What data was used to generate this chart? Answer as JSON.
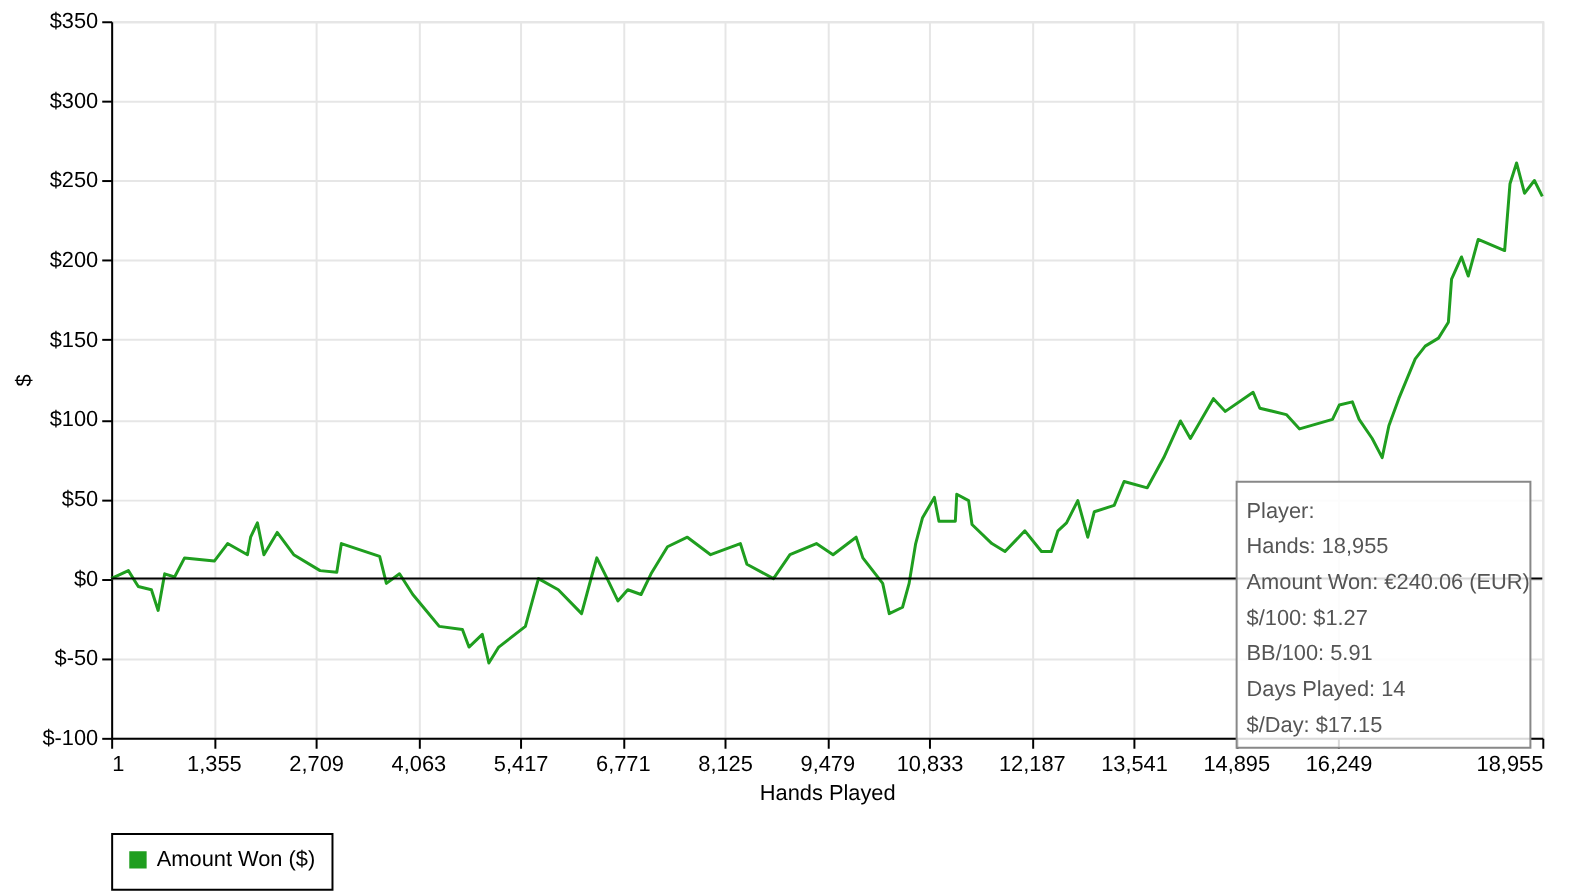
{
  "chart_data": {
    "type": "line",
    "xlabel": "Hands Played",
    "ylabel": "$",
    "x": [
      1,
      229,
      360,
      534,
      623,
      710,
      841,
      973,
      1367,
      1543,
      1806,
      1848,
      1938,
      2024,
      2200,
      2419,
      2768,
      2989,
      3050,
      3557,
      3646,
      3820,
      3996,
      4172,
      4346,
      4653,
      4740,
      4916,
      5003,
      5134,
      5487,
      5660,
      5923,
      6231,
      6362,
      6433,
      6580,
      6712,
      6843,
      7019,
      7151,
      7369,
      7632,
      7940,
      8334,
      8421,
      8773,
      8991,
      9341,
      9562,
      9867,
      9956,
      10219,
      10306,
      10482,
      10569,
      10656,
      10745,
      10903,
      10964,
      11181,
      11200,
      11357,
      11402,
      11665,
      11839,
      12102,
      12322,
      12453,
      12540,
      12654,
      12803,
      12935,
      13022,
      13285,
      13416,
      13723,
      13942,
      14163,
      14294,
      14599,
      14757,
      15125,
      15214,
      15565,
      15740,
      16176,
      16266,
      16439,
      16529,
      16702,
      16834,
      16923,
      17054,
      17272,
      17404,
      17580,
      17711,
      17753,
      17885,
      17974,
      18106,
      18456,
      18527,
      18614,
      18719,
      18850,
      18955
    ],
    "series": [
      {
        "name": "Amount Won ($)",
        "color": "#1f9e1f",
        "values": [
          0,
          5,
          -5,
          -7,
          -20,
          3,
          1,
          13,
          11,
          22,
          15,
          26,
          35,
          15,
          29,
          15,
          5,
          4,
          22,
          14,
          -3,
          3,
          -10,
          -20,
          -30,
          -32,
          -43,
          -35,
          -53,
          -43,
          -30,
          0,
          -7,
          -22,
          1,
          13,
          -1,
          -14,
          -7,
          -10,
          3,
          20,
          26,
          15,
          22,
          9,
          0,
          15,
          22,
          15,
          26,
          13,
          -3,
          -22,
          -18,
          -3,
          22,
          38,
          51,
          36,
          36,
          53,
          49,
          34,
          22,
          17,
          30,
          17,
          17,
          30,
          35,
          49,
          26,
          42,
          46,
          61,
          57,
          76,
          99,
          88,
          113,
          105,
          117,
          107,
          103,
          94,
          100,
          109,
          111,
          100,
          88,
          76,
          96,
          113,
          138,
          146,
          151,
          161,
          188,
          202,
          190,
          213,
          206,
          248,
          261,
          242,
          250,
          240
        ]
      }
    ],
    "xlim": [
      1,
      18955
    ],
    "xticks": [
      {
        "value": 1,
        "label": "1"
      },
      {
        "value": 1355,
        "label": "1,355"
      },
      {
        "value": 2709,
        "label": "2,709"
      },
      {
        "value": 4063,
        "label": "4,063"
      },
      {
        "value": 5417,
        "label": "5,417"
      },
      {
        "value": 6771,
        "label": "6,771"
      },
      {
        "value": 8125,
        "label": "8,125"
      },
      {
        "value": 9479,
        "label": "9,479"
      },
      {
        "value": 10833,
        "label": "10,833"
      },
      {
        "value": 12187,
        "label": "12,187"
      },
      {
        "value": 13541,
        "label": "13,541"
      },
      {
        "value": 14895,
        "label": "14,895"
      },
      {
        "value": 16249,
        "label": "16,249"
      },
      {
        "value": 18955,
        "label": "18,955"
      }
    ],
    "ylim": [
      -100,
      350
    ],
    "yticks": [
      {
        "value": -100,
        "label": "$-100"
      },
      {
        "value": -50,
        "label": "$-50"
      },
      {
        "value": 0,
        "label": "$0"
      },
      {
        "value": 50,
        "label": "$50"
      },
      {
        "value": 100,
        "label": "$100"
      },
      {
        "value": 150,
        "label": "$150"
      },
      {
        "value": 200,
        "label": "$200"
      },
      {
        "value": 250,
        "label": "$250"
      },
      {
        "value": 300,
        "label": "$300"
      },
      {
        "value": 350,
        "label": "$350"
      }
    ],
    "ref_lines": [
      {
        "axis": "y",
        "value": 0,
        "color": "#000000"
      }
    ],
    "annotations": [
      "Player:",
      "Hands: 18,955",
      "Amount Won: €240.06 (EUR)",
      "$/100: $1.27",
      "BB/100: 5.91",
      "Days Played: 14",
      "$/Day: $17.15"
    ],
    "grid": true,
    "legend": "bottom left",
    "marker": "none",
    "line_style": "solid"
  }
}
